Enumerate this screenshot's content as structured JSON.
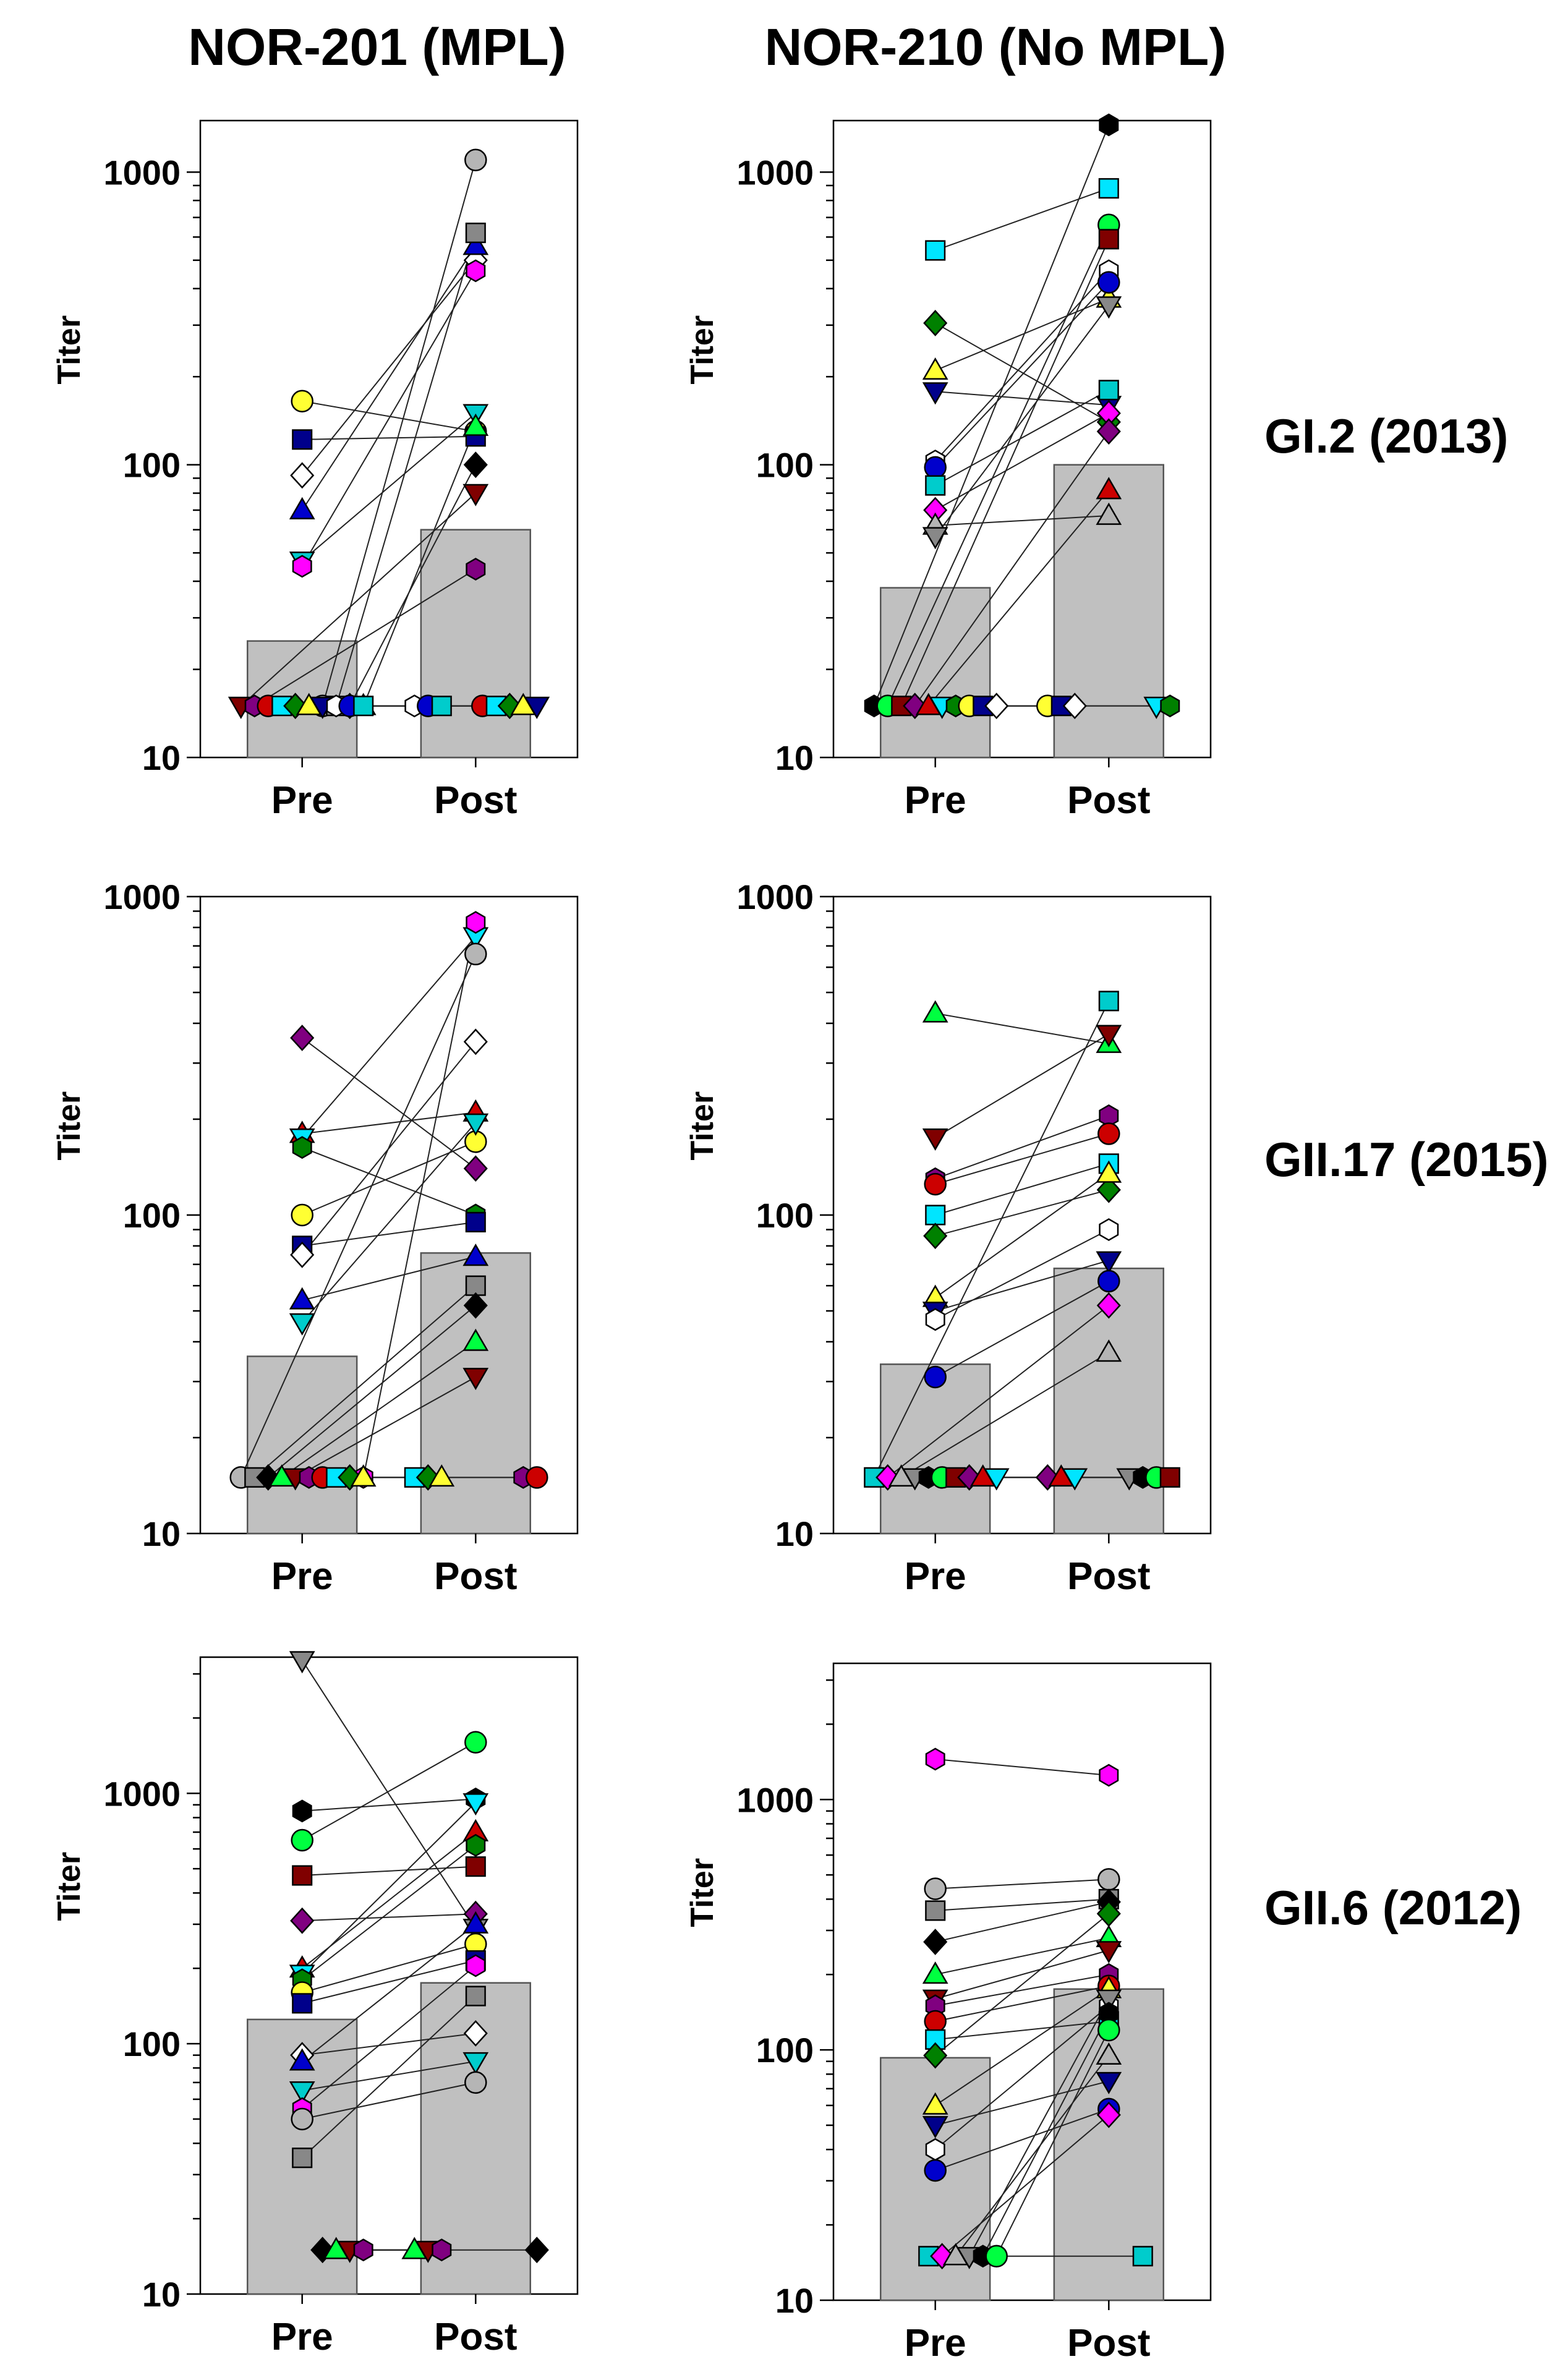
{
  "column_titles": [
    "NOR-201 (MPL)",
    "NOR-210 (No MPL)"
  ],
  "row_titles": [
    "GI.2 (2013)",
    "GII.17 (2015)",
    "GII.6 (2012)"
  ],
  "colors": {
    "bar_fill": "#c0c0c0",
    "bar_stroke": "#555555",
    "panel_border": "#000000",
    "line": "#222222",
    "marker_palette": [
      "#ffff33",
      "#00e5ff",
      "#800080",
      "#00ff40",
      "#888888",
      "#ff00ff",
      "#0000cc",
      "#00008b",
      "#008000",
      "#cc0000",
      "#800000",
      "#000000",
      "#b5b5b5",
      "#00cccc",
      "#ffffff"
    ]
  },
  "chart_data": [
    {
      "type": "bar",
      "title": "NOR-201 (MPL) / GI.2 (2013)",
      "categories": [
        "Pre",
        "Post"
      ],
      "values": [
        25,
        60
      ],
      "ylabel": "Titer",
      "yscale": "log",
      "ylim": [
        10,
        1500
      ],
      "yticks": [
        10,
        100,
        1000
      ],
      "pairs": [
        [
          165,
          130
        ],
        [
          122,
          125
        ],
        [
          92,
          500
        ],
        [
          70,
          560
        ],
        [
          47,
          150
        ],
        [
          45,
          460
        ],
        [
          15,
          1100
        ],
        [
          15,
          620
        ],
        [
          15,
          100
        ],
        [
          15,
          135
        ],
        [
          15,
          80
        ],
        [
          15,
          44
        ],
        [
          15,
          15
        ],
        [
          15,
          15
        ],
        [
          15,
          15
        ],
        [
          15,
          15
        ],
        [
          15,
          15
        ],
        [
          15,
          15
        ],
        [
          15,
          15
        ],
        [
          15,
          15
        ]
      ]
    },
    {
      "type": "bar",
      "title": "NOR-210 (No MPL) / GI.2 (2013)",
      "categories": [
        "Pre",
        "Post"
      ],
      "values": [
        38,
        100
      ],
      "ylabel": "Titer",
      "yscale": "log",
      "ylim": [
        10,
        1500
      ],
      "yticks": [
        10,
        100,
        1000
      ],
      "pairs": [
        [
          540,
          880
        ],
        [
          305,
          140
        ],
        [
          210,
          370
        ],
        [
          178,
          160
        ],
        [
          103,
          460
        ],
        [
          98,
          420
        ],
        [
          85,
          180
        ],
        [
          70,
          150
        ],
        [
          62,
          67
        ],
        [
          57,
          350
        ],
        [
          15,
          1450
        ],
        [
          15,
          660
        ],
        [
          15,
          590
        ],
        [
          15,
          130
        ],
        [
          15,
          82
        ],
        [
          15,
          15
        ],
        [
          15,
          15
        ],
        [
          15,
          15
        ],
        [
          15,
          15
        ],
        [
          15,
          15
        ]
      ]
    },
    {
      "type": "bar",
      "title": "NOR-201 (MPL) / GII.17 (2015)",
      "categories": [
        "Pre",
        "Post"
      ],
      "values": [
        36,
        76
      ],
      "ylabel": "Titer",
      "yscale": "log",
      "ylim": [
        10,
        1000
      ],
      "yticks": [
        10,
        100,
        1000
      ],
      "pairs": [
        [
          360,
          140
        ],
        [
          180,
          210
        ],
        [
          175,
          750
        ],
        [
          163,
          100
        ],
        [
          100,
          170
        ],
        [
          80,
          95
        ],
        [
          75,
          350
        ],
        [
          54,
          74
        ],
        [
          46,
          195
        ],
        [
          15,
          830
        ],
        [
          15,
          660
        ],
        [
          15,
          60
        ],
        [
          15,
          52
        ],
        [
          15,
          40
        ],
        [
          15,
          31
        ],
        [
          15,
          15
        ],
        [
          15,
          15
        ],
        [
          15,
          15
        ],
        [
          15,
          15
        ],
        [
          15,
          15
        ]
      ]
    },
    {
      "type": "bar",
      "title": "NOR-210 (No MPL) / GII.17 (2015)",
      "categories": [
        "Pre",
        "Post"
      ],
      "values": [
        34,
        68
      ],
      "ylabel": "Titer",
      "yscale": "log",
      "ylim": [
        10,
        1000
      ],
      "yticks": [
        10,
        100,
        1000
      ],
      "pairs": [
        [
          430,
          345
        ],
        [
          175,
          370
        ],
        [
          130,
          205
        ],
        [
          125,
          180
        ],
        [
          100,
          145
        ],
        [
          86,
          120
        ],
        [
          55,
          135
        ],
        [
          50,
          72
        ],
        [
          47,
          90
        ],
        [
          31,
          62
        ],
        [
          15,
          470
        ],
        [
          15,
          52
        ],
        [
          15,
          37
        ],
        [
          15,
          15
        ],
        [
          15,
          15
        ],
        [
          15,
          15
        ],
        [
          15,
          15
        ],
        [
          15,
          15
        ],
        [
          15,
          15
        ],
        [
          15,
          15
        ]
      ]
    },
    {
      "type": "bar",
      "title": "NOR-201 (MPL) / GII.6 (2012)",
      "categories": [
        "Pre",
        "Post"
      ],
      "values": [
        125,
        175
      ],
      "ylabel": "Titer",
      "yscale": "log",
      "ylim": [
        10,
        3500
      ],
      "yticks": [
        10,
        100,
        1000
      ],
      "pairs": [
        [
          3400,
          290
        ],
        [
          850,
          950
        ],
        [
          650,
          1600
        ],
        [
          470,
          510
        ],
        [
          310,
          330
        ],
        [
          200,
          700
        ],
        [
          190,
          920
        ],
        [
          180,
          620
        ],
        [
          160,
          250
        ],
        [
          145,
          215
        ],
        [
          90,
          110
        ],
        [
          85,
          300
        ],
        [
          65,
          85
        ],
        [
          55,
          205
        ],
        [
          50,
          70
        ],
        [
          35,
          155
        ],
        [
          15,
          15
        ],
        [
          15,
          15
        ],
        [
          15,
          15
        ],
        [
          15,
          15
        ]
      ]
    },
    {
      "type": "bar",
      "title": "NOR-210 (No MPL) / GII.6 (2012)",
      "categories": [
        "Pre",
        "Post"
      ],
      "values": [
        93,
        175
      ],
      "ylabel": "Titer",
      "yscale": "log",
      "ylim": [
        10,
        3500
      ],
      "yticks": [
        10,
        100,
        1000
      ],
      "pairs": [
        [
          1450,
          1250
        ],
        [
          440,
          480
        ],
        [
          360,
          400
        ],
        [
          270,
          390
        ],
        [
          200,
          280
        ],
        [
          160,
          250
        ],
        [
          150,
          200
        ],
        [
          130,
          180
        ],
        [
          110,
          130
        ],
        [
          95,
          350
        ],
        [
          60,
          175
        ],
        [
          50,
          75
        ],
        [
          40,
          150
        ],
        [
          33,
          58
        ],
        [
          15,
          15
        ],
        [
          15,
          55
        ],
        [
          15,
          95
        ],
        [
          15,
          160
        ],
        [
          15,
          140
        ],
        [
          15,
          120
        ]
      ]
    }
  ]
}
